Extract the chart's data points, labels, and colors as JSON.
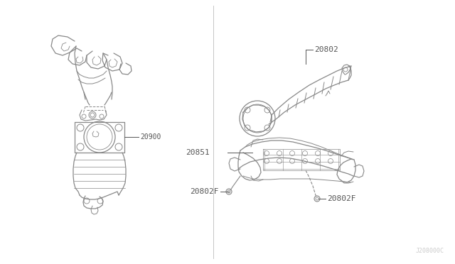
{
  "background_color": "#ffffff",
  "line_color": "#888888",
  "label_color": "#555555",
  "fig_width": 6.4,
  "fig_height": 3.72,
  "dpi": 100,
  "watermark": "J208000C",
  "border_color": "#cccccc"
}
